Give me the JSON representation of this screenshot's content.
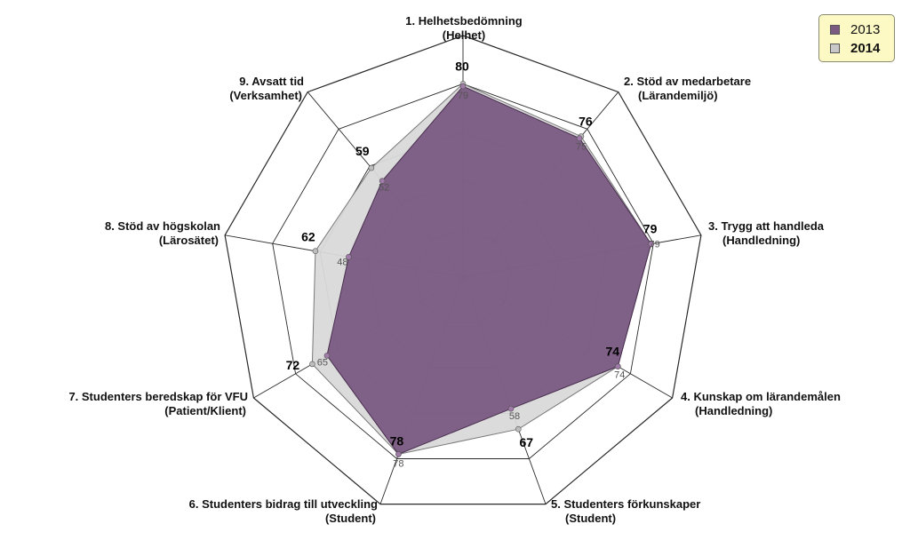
{
  "chart_data": {
    "type": "radar",
    "title": "",
    "categories": [
      {
        "line1": "1. Helhetsbedömning",
        "line2": "(Helhet)"
      },
      {
        "line1": "2. Stöd av medarbetare",
        "line2": "(Lärandemiljö)"
      },
      {
        "line1": "3. Trygg att handleda",
        "line2": "(Handledning)"
      },
      {
        "line1": "4. Kunskap om lärandemålen",
        "line2": "(Handledning)"
      },
      {
        "line1": "5. Studenters förkunskaper",
        "line2": "(Student)"
      },
      {
        "line1": "6. Studenters bidrag till utveckling",
        "line2": "(Student)"
      },
      {
        "line1": "7. Studenters beredskap för VFU",
        "line2": "(Patient/Klient)"
      },
      {
        "line1": "8. Stöd av högskolan",
        "line2": "(Lärosätet)"
      },
      {
        "line1": "9. Avsatt tid",
        "line2": "(Verksamhet)"
      }
    ],
    "series": [
      {
        "name": "2013",
        "values": [
          79,
          75,
          79,
          74,
          58,
          78,
          65,
          48,
          52
        ],
        "color": "#7a5a80"
      },
      {
        "name": "2014",
        "values": [
          80,
          76,
          79,
          74,
          67,
          78,
          72,
          62,
          59
        ],
        "color": "#c8c8c8"
      }
    ],
    "rlim": [
      0,
      100
    ],
    "rings": 5,
    "legend_position": "top-right"
  },
  "legend": {
    "item1": "2013",
    "item2": "2014"
  }
}
